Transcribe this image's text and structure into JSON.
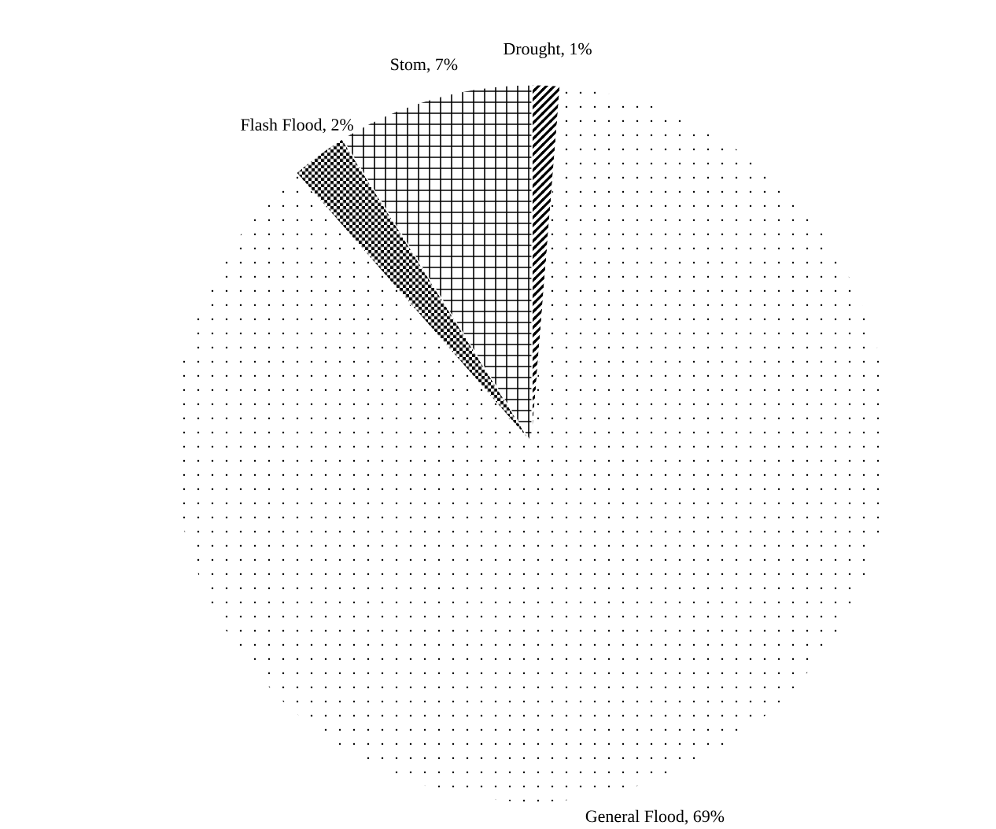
{
  "chart_data": {
    "type": "pie",
    "categories": [
      "Drought",
      "General Flood",
      "Flash Flood",
      "Stom"
    ],
    "values": [
      1,
      69,
      2,
      7
    ],
    "value_labels": [
      ", 1%",
      ", 69%",
      ", 2%",
      ", 7%"
    ],
    "colors": [
      "#ffffff",
      "#ffffff",
      "#ffffff",
      "#ffffff"
    ]
  }
}
